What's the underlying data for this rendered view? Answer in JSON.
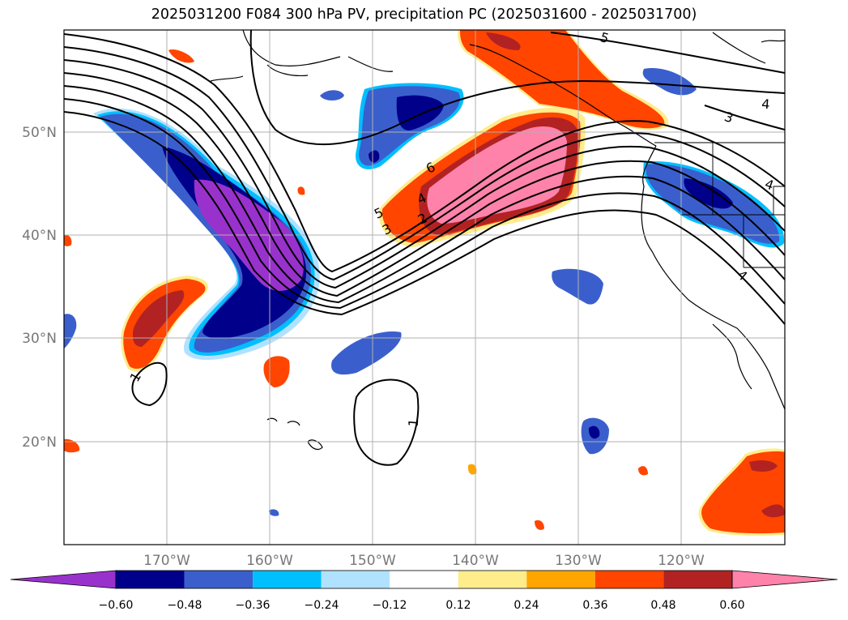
{
  "title": "2025031200 F084 300 hPa PV, precipitation PC (2025031600 - 2025031700)",
  "map": {
    "lon_range_deg": [
      -180,
      -110
    ],
    "lat_range_deg": [
      10,
      60
    ],
    "grid": true,
    "lat_ticks": [
      {
        "lat": 50,
        "label": "50°N"
      },
      {
        "lat": 40,
        "label": "40°N"
      },
      {
        "lat": 30,
        "label": "30°N"
      },
      {
        "lat": 20,
        "label": "20°N"
      }
    ],
    "lon_ticks": [
      {
        "lon": -170,
        "label": "170°W"
      },
      {
        "lon": -160,
        "label": "160°W"
      },
      {
        "lon": -150,
        "label": "150°W"
      },
      {
        "lon": -140,
        "label": "140°W"
      },
      {
        "lon": -130,
        "label": "130°W"
      },
      {
        "lon": -120,
        "label": "120°W"
      }
    ],
    "pv_contour_labels": [
      "1",
      "1",
      "2",
      "3",
      "4",
      "5",
      "6",
      "5",
      "4",
      "3",
      "4",
      "4"
    ]
  },
  "colorbar": {
    "colors": [
      "#9932cc",
      "#00008b",
      "#3a5fcd",
      "#00bfff",
      "#b0e2ff",
      "#ffffff",
      "#ffec8b",
      "#ffa500",
      "#ff4500",
      "#b22222",
      "#ff82ab"
    ],
    "tick_labels": [
      "−0.60",
      "−0.48",
      "−0.36",
      "−0.24",
      "−0.12",
      "0.12",
      "0.24",
      "0.36",
      "0.48",
      "0.60"
    ],
    "extend": "both"
  },
  "colors": {
    "grid": "#b0b0b0",
    "coast": "#000000",
    "contour": "#000000"
  }
}
